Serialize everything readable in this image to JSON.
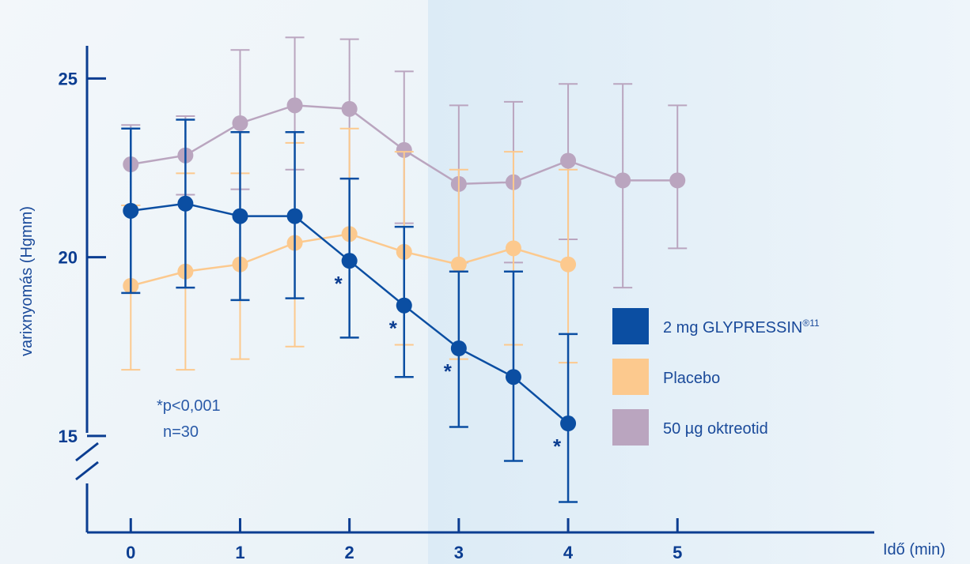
{
  "chart_data": {
    "type": "line",
    "xlabel": "Idő (min)",
    "ylabel": "varixnyomás (Hgmm)",
    "x_ticks": [
      0,
      1,
      2,
      3,
      4,
      5
    ],
    "y_ticks": [
      15,
      20,
      25
    ],
    "xlim": [
      -0.4,
      6.8
    ],
    "ylim": [
      12.3,
      26.8
    ],
    "axis_break": true,
    "grid": false,
    "legend_position": "right",
    "annotation": [
      "*p<0,001",
      "n=30"
    ],
    "significance_marker": "*",
    "colors": {
      "background_left": "#f1f6fa",
      "background_right": "#e4f0f8",
      "axis": "#0b3d91"
    },
    "series": [
      {
        "name": "50 µg oktreotid",
        "color": "#baa5bf",
        "x": [
          0,
          0.5,
          1,
          1.5,
          2,
          2.5,
          3,
          3.5,
          4,
          4.5,
          5
        ],
        "y": [
          22.6,
          22.85,
          23.75,
          24.25,
          24.15,
          23.0,
          22.05,
          22.1,
          22.7,
          22.15,
          22.15
        ],
        "err_hi": [
          23.7,
          23.95,
          25.8,
          26.15,
          26.1,
          25.2,
          24.25,
          24.35,
          24.85,
          24.85,
          24.25
        ],
        "err_lo": [
          21.45,
          21.75,
          21.9,
          22.45,
          22.2,
          20.95,
          19.85,
          19.85,
          20.5,
          19.15,
          20.25
        ]
      },
      {
        "name": "Placebo",
        "color": "#fcc98e",
        "x": [
          0,
          0.5,
          1,
          1.5,
          2,
          2.5,
          3,
          3.5,
          4
        ],
        "y": [
          19.2,
          19.6,
          19.8,
          20.4,
          20.65,
          20.15,
          19.8,
          20.25,
          19.8
        ],
        "err_hi": [
          21.45,
          22.35,
          22.35,
          23.2,
          23.6,
          22.95,
          22.45,
          22.95,
          22.45
        ],
        "err_lo": [
          16.85,
          16.85,
          17.15,
          17.5,
          17.75,
          17.55,
          17.15,
          17.55,
          17.05
        ]
      },
      {
        "name": "2 mg GLYPRESSIN",
        "name_sup": "®11",
        "color": "#0b4ea2",
        "x": [
          0,
          0.5,
          1,
          1.5,
          2,
          2.5,
          3,
          3.5,
          4
        ],
        "y": [
          21.3,
          21.5,
          21.15,
          21.15,
          19.9,
          18.65,
          17.45,
          16.65,
          15.35
        ],
        "err_hi": [
          23.6,
          23.85,
          23.5,
          23.5,
          22.2,
          20.85,
          19.6,
          19.6,
          17.85
        ],
        "err_lo": [
          19.0,
          19.15,
          18.8,
          18.85,
          17.75,
          16.65,
          15.25,
          14.3,
          13.15
        ],
        "significant": [
          false,
          false,
          false,
          false,
          true,
          true,
          true,
          false,
          true
        ]
      }
    ]
  }
}
